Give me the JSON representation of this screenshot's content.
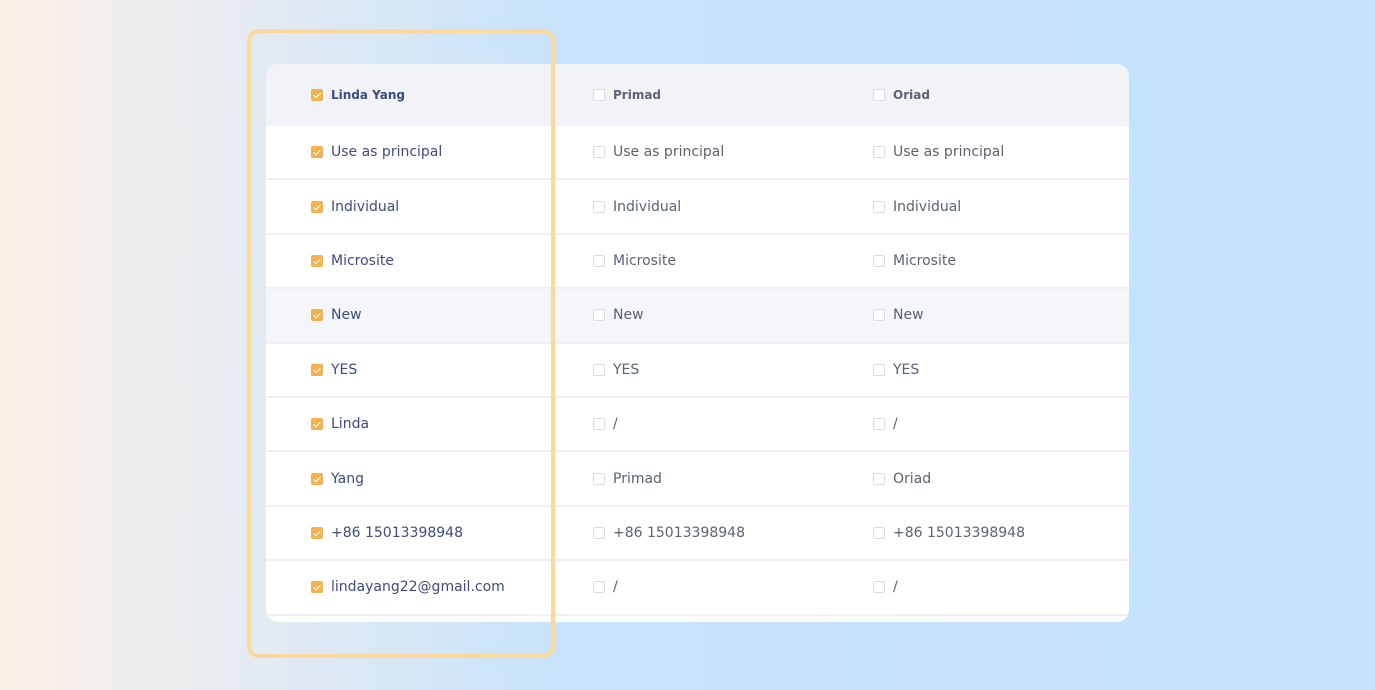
{
  "columns": [
    {
      "header": "Linda Yang",
      "checked": true,
      "values": [
        "Use as principal",
        "Individual",
        "Microsite",
        "New",
        "YES",
        "Linda",
        "Yang",
        "+86 15013398948",
        "lindayang22@gmail.com"
      ]
    },
    {
      "header": "Primad",
      "checked": false,
      "values": [
        "Use as principal",
        "Individual",
        "Microsite",
        "New",
        "YES",
        "/",
        "Primad",
        "+86 15013398948",
        "/"
      ]
    },
    {
      "header": "Oriad",
      "checked": false,
      "values": [
        "Use as principal",
        "Individual",
        "Microsite",
        "New",
        "YES",
        "/",
        "Oriad",
        "+86 15013398948",
        "/"
      ]
    }
  ],
  "highlighted_row": 4,
  "colors": {
    "accent": "#f2b24f",
    "frame": "#fdd89b",
    "text_selected": "#3e4a80"
  }
}
